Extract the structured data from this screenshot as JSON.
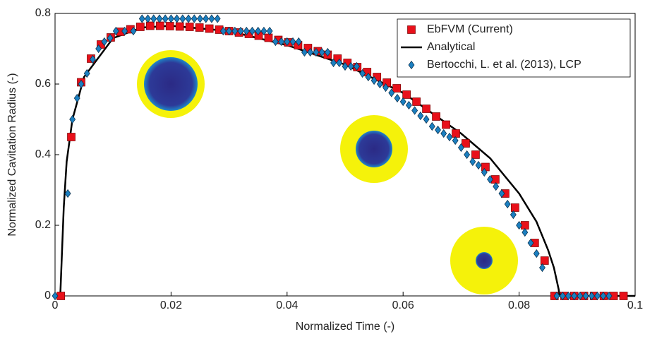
{
  "chart_data": {
    "type": "scatter",
    "xlabel": "Normalized Time (-)",
    "ylabel": "Normalized Cavitation Radius (-)",
    "xlim": [
      0,
      0.1
    ],
    "ylim": [
      0,
      0.8
    ],
    "xticks": [
      0,
      0.02,
      0.04,
      0.06,
      0.08,
      0.1
    ],
    "yticks": [
      0,
      0.2,
      0.4,
      0.6,
      0.8
    ],
    "legend": "upper right",
    "series": [
      {
        "name": "EbFVM (Current)",
        "kind": "marker",
        "marker": "square",
        "color": "#e8101a",
        "x": [
          0.001,
          0.0028,
          0.0045,
          0.0062,
          0.0079,
          0.0096,
          0.0113,
          0.013,
          0.0147,
          0.0164,
          0.0181,
          0.0198,
          0.0215,
          0.0232,
          0.0249,
          0.0266,
          0.0283,
          0.03,
          0.0317,
          0.0334,
          0.0351,
          0.0368,
          0.0385,
          0.0402,
          0.0419,
          0.0436,
          0.0453,
          0.047,
          0.0487,
          0.0504,
          0.0521,
          0.0538,
          0.0555,
          0.0572,
          0.0589,
          0.0606,
          0.0623,
          0.064,
          0.0657,
          0.0674,
          0.0691,
          0.0708,
          0.0725,
          0.0742,
          0.0759,
          0.0776,
          0.0793,
          0.081,
          0.0827,
          0.0844,
          0.0861,
          0.0878,
          0.0895,
          0.0912,
          0.0929,
          0.0946,
          0.0963,
          0.098
        ],
        "values": [
          0,
          0.45,
          0.605,
          0.672,
          0.712,
          0.732,
          0.748,
          0.755,
          0.762,
          0.765,
          0.765,
          0.764,
          0.763,
          0.762,
          0.76,
          0.757,
          0.754,
          0.75,
          0.746,
          0.742,
          0.737,
          0.731,
          0.725,
          0.718,
          0.71,
          0.702,
          0.693,
          0.683,
          0.672,
          0.66,
          0.648,
          0.634,
          0.62,
          0.604,
          0.588,
          0.57,
          0.55,
          0.53,
          0.508,
          0.485,
          0.46,
          0.432,
          0.4,
          0.365,
          0.33,
          0.29,
          0.25,
          0.2,
          0.15,
          0.1,
          0,
          0,
          0,
          0,
          0,
          0,
          0,
          0
        ]
      },
      {
        "name": "Analytical",
        "kind": "line",
        "color": "#000000",
        "x": [
          0,
          0.0009,
          0.0015,
          0.002,
          0.003,
          0.005,
          0.01,
          0.015,
          0.02,
          0.03,
          0.04,
          0.05,
          0.06,
          0.07,
          0.075,
          0.08,
          0.083,
          0.085,
          0.086,
          0.0868,
          0.087,
          0.1
        ],
        "values": [
          0,
          0,
          0.25,
          0.38,
          0.5,
          0.62,
          0.73,
          0.76,
          0.765,
          0.75,
          0.71,
          0.655,
          0.575,
          0.46,
          0.39,
          0.29,
          0.21,
          0.13,
          0.08,
          0.02,
          0,
          0
        ]
      },
      {
        "name": "Bertocchi, L. et al. (2013), LCP",
        "kind": "marker",
        "marker": "diamond",
        "color": "#1b7fc0",
        "x": [
          0,
          0.0022,
          0.003,
          0.0038,
          0.0045,
          0.0055,
          0.0065,
          0.0075,
          0.0085,
          0.0095,
          0.0105,
          0.012,
          0.0135,
          0.015,
          0.016,
          0.017,
          0.018,
          0.019,
          0.02,
          0.021,
          0.022,
          0.023,
          0.024,
          0.025,
          0.026,
          0.027,
          0.028,
          0.029,
          0.03,
          0.031,
          0.032,
          0.033,
          0.034,
          0.035,
          0.036,
          0.037,
          0.038,
          0.039,
          0.04,
          0.041,
          0.042,
          0.043,
          0.044,
          0.045,
          0.046,
          0.047,
          0.048,
          0.049,
          0.05,
          0.051,
          0.052,
          0.053,
          0.054,
          0.055,
          0.056,
          0.057,
          0.058,
          0.059,
          0.06,
          0.061,
          0.062,
          0.063,
          0.064,
          0.065,
          0.066,
          0.067,
          0.068,
          0.069,
          0.07,
          0.071,
          0.072,
          0.073,
          0.074,
          0.075,
          0.076,
          0.077,
          0.078,
          0.079,
          0.08,
          0.081,
          0.082,
          0.083,
          0.084,
          0.0865,
          0.0875,
          0.0885,
          0.0895,
          0.0905,
          0.0915,
          0.0925,
          0.0935,
          0.0945,
          0.0955
        ],
        "values": [
          0,
          0.29,
          0.5,
          0.56,
          0.6,
          0.63,
          0.67,
          0.7,
          0.72,
          0.73,
          0.75,
          0.75,
          0.75,
          0.785,
          0.785,
          0.785,
          0.785,
          0.785,
          0.785,
          0.785,
          0.785,
          0.785,
          0.785,
          0.785,
          0.785,
          0.785,
          0.785,
          0.75,
          0.75,
          0.75,
          0.75,
          0.75,
          0.75,
          0.75,
          0.75,
          0.75,
          0.72,
          0.72,
          0.72,
          0.72,
          0.72,
          0.69,
          0.69,
          0.69,
          0.69,
          0.69,
          0.66,
          0.66,
          0.65,
          0.65,
          0.65,
          0.63,
          0.62,
          0.61,
          0.6,
          0.59,
          0.575,
          0.56,
          0.55,
          0.54,
          0.525,
          0.51,
          0.5,
          0.48,
          0.47,
          0.46,
          0.45,
          0.44,
          0.42,
          0.4,
          0.38,
          0.37,
          0.35,
          0.33,
          0.31,
          0.29,
          0.26,
          0.23,
          0.2,
          0.18,
          0.15,
          0.12,
          0.08,
          0,
          0,
          0,
          0,
          0,
          0,
          0,
          0,
          0,
          0
        ]
      }
    ]
  }
}
